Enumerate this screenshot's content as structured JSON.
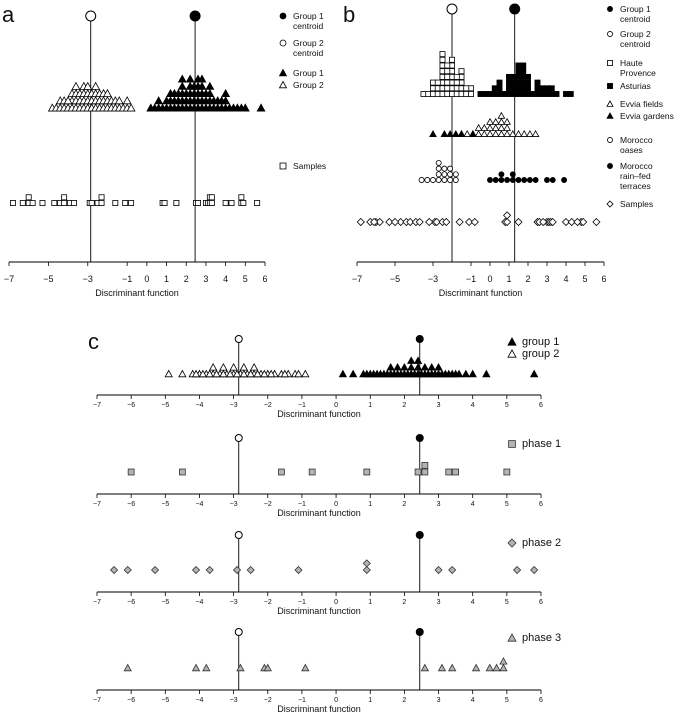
{
  "figure": {
    "panels": [
      {
        "id": "a",
        "letter": "a",
        "legend": [
          "Group 1\ncentroid",
          "Group 2\ncentroid",
          "Group 1",
          "Group 2",
          "Samples"
        ]
      },
      {
        "id": "b",
        "letter": "b",
        "legend": [
          "Group 1\ncentroid",
          "Group 2\ncentroid",
          "Haute\nProvence",
          "Asturias",
          "Evvia fields",
          "Evvia gardens",
          "Morocco\noases",
          "Morocco\nrain–fed\nterraces",
          "Samples"
        ]
      },
      {
        "id": "c",
        "letter": "c",
        "legend": [
          "group 1",
          "group 2",
          "phase 1",
          "phase 2",
          "phase 3"
        ]
      }
    ]
  },
  "chart_data": [
    {
      "type": "scatter",
      "panel": "a",
      "xlabel": "Discriminant function",
      "xlim": [
        -7,
        6
      ],
      "xticks": [
        -7,
        -5,
        -3,
        -1,
        0,
        1,
        2,
        3,
        4,
        5,
        6
      ],
      "centroids": {
        "group1": 2.45,
        "group2": -2.85
      },
      "series": [
        {
          "name": "Group 1",
          "marker": "triangle-filled",
          "values": [
            0.2,
            0.4,
            0.6,
            0.8,
            1.0,
            1.2,
            1.4,
            1.6,
            1.8,
            2.0,
            2.2,
            2.4,
            2.6,
            2.8,
            3.0,
            3.2,
            3.4,
            3.6,
            3.8,
            4.0,
            4.2,
            4.4,
            4.6,
            4.8,
            5.0,
            5.8,
            0.6,
            0.9,
            1.1,
            1.3,
            1.5,
            1.7,
            1.9,
            2.1,
            2.3,
            2.5,
            2.7,
            2.9,
            3.1,
            3.3,
            3.5,
            3.7,
            3.9,
            4.1,
            1.2,
            1.4,
            1.6,
            1.8,
            2.0,
            2.2,
            2.4,
            2.6,
            2.8,
            3.0,
            3.2,
            3.4,
            1.8,
            2.0,
            2.2,
            2.4,
            2.6,
            2.8,
            3.0,
            2.4,
            2.6
          ]
        },
        {
          "name": "Group 2",
          "marker": "triangle-open",
          "values": [
            -4.9,
            -4.6,
            -4.4,
            -4.2,
            -4.0,
            -3.8,
            -3.6,
            -3.4,
            -3.2,
            -3.0,
            -2.8,
            -2.6,
            -2.4,
            -2.2,
            -2.0,
            -1.8,
            -1.6,
            -1.4,
            -1.2,
            -1.0,
            -0.8,
            -4.5,
            -4.2,
            -3.9,
            -3.7,
            -3.5,
            -3.3,
            -3.1,
            -2.9,
            -2.7,
            -2.5,
            -2.3,
            -2.1,
            -1.9,
            -1.7,
            -1.4,
            -1.1,
            -4.0,
            -3.8,
            -3.6,
            -3.4,
            -3.2,
            -3.0,
            -2.8,
            -2.6,
            -2.4,
            -2.2,
            -2.0,
            -3.6,
            -3.3,
            -3.0,
            -2.7
          ]
        },
        {
          "name": "Samples",
          "marker": "square-open",
          "values": [
            -6.8,
            -6.3,
            -6.0,
            -6.0,
            -5.8,
            -5.3,
            -4.7,
            -4.4,
            -4.2,
            -4.2,
            -3.9,
            -3.7,
            -2.9,
            -2.8,
            -2.5,
            -2.3,
            -2.3,
            -1.6,
            -1.1,
            -0.8,
            0.8,
            0.9,
            1.5,
            2.5,
            2.6,
            3.0,
            3.1,
            3.2,
            3.2,
            3.3,
            3.3,
            4.0,
            4.3,
            4.8,
            4.8,
            4.9,
            5.6
          ]
        }
      ]
    },
    {
      "type": "scatter",
      "panel": "b",
      "xlabel": "Discriminant function",
      "xlim": [
        -7,
        6
      ],
      "xticks": [
        -7,
        -5,
        -3,
        -1,
        0,
        1,
        2,
        3,
        4,
        5,
        6
      ],
      "centroids": {
        "group1": 1.3,
        "group2": -2.0
      },
      "series": [
        {
          "name": "Haute Provence",
          "marker": "square-open",
          "values": [
            -3.5,
            -3.3,
            -3.1,
            -2.9,
            -2.7,
            -2.5,
            -2.3,
            -2.1,
            -1.9,
            -1.7,
            -1.5,
            -1.3,
            -1.1,
            -0.9,
            -3.0,
            -2.8,
            -2.6,
            -2.4,
            -2.2,
            -2.0,
            -1.8,
            -1.6,
            -1.4,
            -1.2,
            -2.8,
            -2.6,
            -2.4,
            -2.2,
            -2.0,
            -1.8,
            -1.6,
            -1.4,
            -2.6,
            -2.4,
            -2.2,
            -2.0,
            -1.8,
            -2.4,
            -2.2,
            -2.0,
            -2.2,
            -2.0
          ]
        },
        {
          "name": "Asturias",
          "marker": "square-filled",
          "values": [
            -0.6,
            -0.3,
            0.0,
            0.3,
            0.6,
            0.9,
            1.2,
            1.5,
            1.8,
            2.1,
            2.4,
            2.7,
            3.0,
            3.3,
            3.6,
            3.9,
            4.2,
            0.2,
            0.5,
            0.8,
            1.1,
            1.4,
            1.7,
            2.0,
            2.3,
            2.6,
            2.9,
            3.2,
            0.6,
            0.9,
            1.2,
            1.5,
            1.8,
            2.1,
            2.4,
            2.7,
            0.9,
            1.2,
            1.5,
            1.8,
            2.1,
            1.2,
            1.5,
            1.8,
            1.5,
            1.8
          ]
        },
        {
          "name": "Evvia fields",
          "marker": "triangle-open",
          "values": [
            -1.5,
            -1.2,
            -0.9,
            -0.6,
            -0.3,
            0.0,
            0.3,
            0.6,
            0.9,
            1.2,
            1.5,
            1.8,
            2.1,
            2.4,
            -0.6,
            -0.3,
            0.0,
            0.3,
            0.6,
            0.9,
            0.0,
            0.3,
            0.6,
            0.9,
            0.6
          ]
        },
        {
          "name": "Evvia gardens",
          "marker": "triangle-filled",
          "values": [
            -3.0,
            -2.4,
            -2.1,
            -1.7,
            -1.4,
            -1.0
          ]
        },
        {
          "name": "Morocco oases",
          "marker": "circle-open",
          "values": [
            -3.5,
            -3.2,
            -2.9,
            -2.6,
            -2.3,
            -2.0,
            -1.7,
            -2.8,
            -2.5,
            -2.2,
            -1.9,
            -2.7,
            -2.4,
            -2.1,
            -2.6
          ]
        },
        {
          "name": "Morocco rain–fed terraces",
          "marker": "circle-filled",
          "values": [
            0.0,
            0.3,
            0.6,
            0.9,
            1.2,
            1.5,
            2.1,
            2.5,
            2.9,
            3.4,
            3.9,
            1.2,
            0.5,
            1.7
          ]
        },
        {
          "name": "Samples",
          "marker": "diamond-open",
          "values": [
            -6.8,
            -6.3,
            -6.0,
            -5.8,
            -5.3,
            -4.7,
            -4.4,
            -4.2,
            -3.9,
            -3.7,
            -2.9,
            -2.8,
            -2.5,
            -2.3,
            -1.6,
            -1.1,
            -0.8,
            0.8,
            0.9,
            1.5,
            2.5,
            2.6,
            3.0,
            3.1,
            3.2,
            3.3,
            4.0,
            4.3,
            4.8,
            4.9,
            5.6,
            -6.1,
            -5.0,
            -3.2,
            0.9,
            2.8,
            4.6
          ]
        }
      ]
    },
    {
      "type": "scatter",
      "panel": "c-groups",
      "xlabel": "Discriminant function",
      "xlim": [
        -7,
        6
      ],
      "xticks": [
        -7,
        -6,
        -5,
        -4,
        -3,
        -2,
        -1,
        0,
        1,
        2,
        3,
        4,
        5,
        6
      ],
      "centroids": {
        "group1": 2.45,
        "group2": -2.85
      },
      "series": [
        {
          "name": "group 1",
          "marker": "triangle-filled",
          "values": [
            0.2,
            0.5,
            0.8,
            1.0,
            1.2,
            1.4,
            1.6,
            1.8,
            2.0,
            2.2,
            2.4,
            2.6,
            2.8,
            3.0,
            3.2,
            3.4,
            3.6,
            3.8,
            4.0,
            4.4,
            5.8,
            0.9,
            1.1,
            1.3,
            1.5,
            1.7,
            1.9,
            2.1,
            2.3,
            2.5,
            2.7,
            2.9,
            3.1,
            3.3,
            3.5,
            1.6,
            1.8,
            2.0,
            2.2,
            2.4,
            2.6,
            2.8,
            3.0,
            2.2,
            2.4
          ]
        },
        {
          "name": "group 2",
          "marker": "triangle-open",
          "values": [
            -4.9,
            -4.5,
            -4.2,
            -4.0,
            -3.8,
            -3.6,
            -3.4,
            -3.2,
            -3.0,
            -2.8,
            -2.6,
            -2.4,
            -2.2,
            -2.0,
            -1.8,
            -1.6,
            -1.4,
            -1.2,
            -0.9,
            -4.1,
            -3.9,
            -3.7,
            -3.5,
            -3.3,
            -3.1,
            -2.9,
            -2.7,
            -2.5,
            -2.3,
            -2.1,
            -1.9,
            -1.5,
            -1.1,
            -3.6,
            -3.3,
            -3.0,
            -2.7,
            -2.4
          ]
        }
      ]
    },
    {
      "type": "scatter",
      "panel": "c-phase1",
      "xlabel": "Discriminant function",
      "xlim": [
        -7,
        6
      ],
      "xticks": [
        -7,
        -6,
        -5,
        -4,
        -3,
        -2,
        -1,
        0,
        1,
        2,
        3,
        4,
        5,
        6
      ],
      "centroids": {
        "group1": 2.45,
        "group2": -2.85
      },
      "series": [
        {
          "name": "phase 1",
          "marker": "square-grey",
          "values": [
            -6.0,
            -4.5,
            -1.6,
            -0.7,
            0.9,
            2.4,
            2.6,
            2.6,
            3.3,
            3.5,
            5.0
          ]
        }
      ]
    },
    {
      "type": "scatter",
      "panel": "c-phase2",
      "xlabel": "Discriminant function",
      "xlim": [
        -7,
        6
      ],
      "xticks": [
        -7,
        -6,
        -5,
        -4,
        -3,
        -2,
        -1,
        0,
        1,
        2,
        3,
        4,
        5,
        6
      ],
      "centroids": {
        "group1": 2.45,
        "group2": -2.85
      },
      "series": [
        {
          "name": "phase 2",
          "marker": "diamond-grey",
          "values": [
            -6.5,
            -6.1,
            -5.3,
            -4.1,
            -3.7,
            -2.9,
            -2.5,
            -1.1,
            0.9,
            0.9,
            3.0,
            3.4,
            5.3,
            5.8
          ]
        }
      ]
    },
    {
      "type": "scatter",
      "panel": "c-phase3",
      "xlabel": "Discriminant function",
      "xlim": [
        -7,
        6
      ],
      "xticks": [
        -7,
        -6,
        -5,
        -4,
        -3,
        -2,
        -1,
        0,
        1,
        2,
        3,
        4,
        5,
        6
      ],
      "centroids": {
        "group1": 2.45,
        "group2": -2.85
      },
      "series": [
        {
          "name": "phase 3",
          "marker": "triangle-grey",
          "values": [
            -6.1,
            -4.1,
            -3.8,
            -2.8,
            -2.1,
            -2.0,
            -0.9,
            2.6,
            3.1,
            3.4,
            4.1,
            4.5,
            4.7,
            4.9,
            4.9
          ]
        }
      ]
    }
  ]
}
